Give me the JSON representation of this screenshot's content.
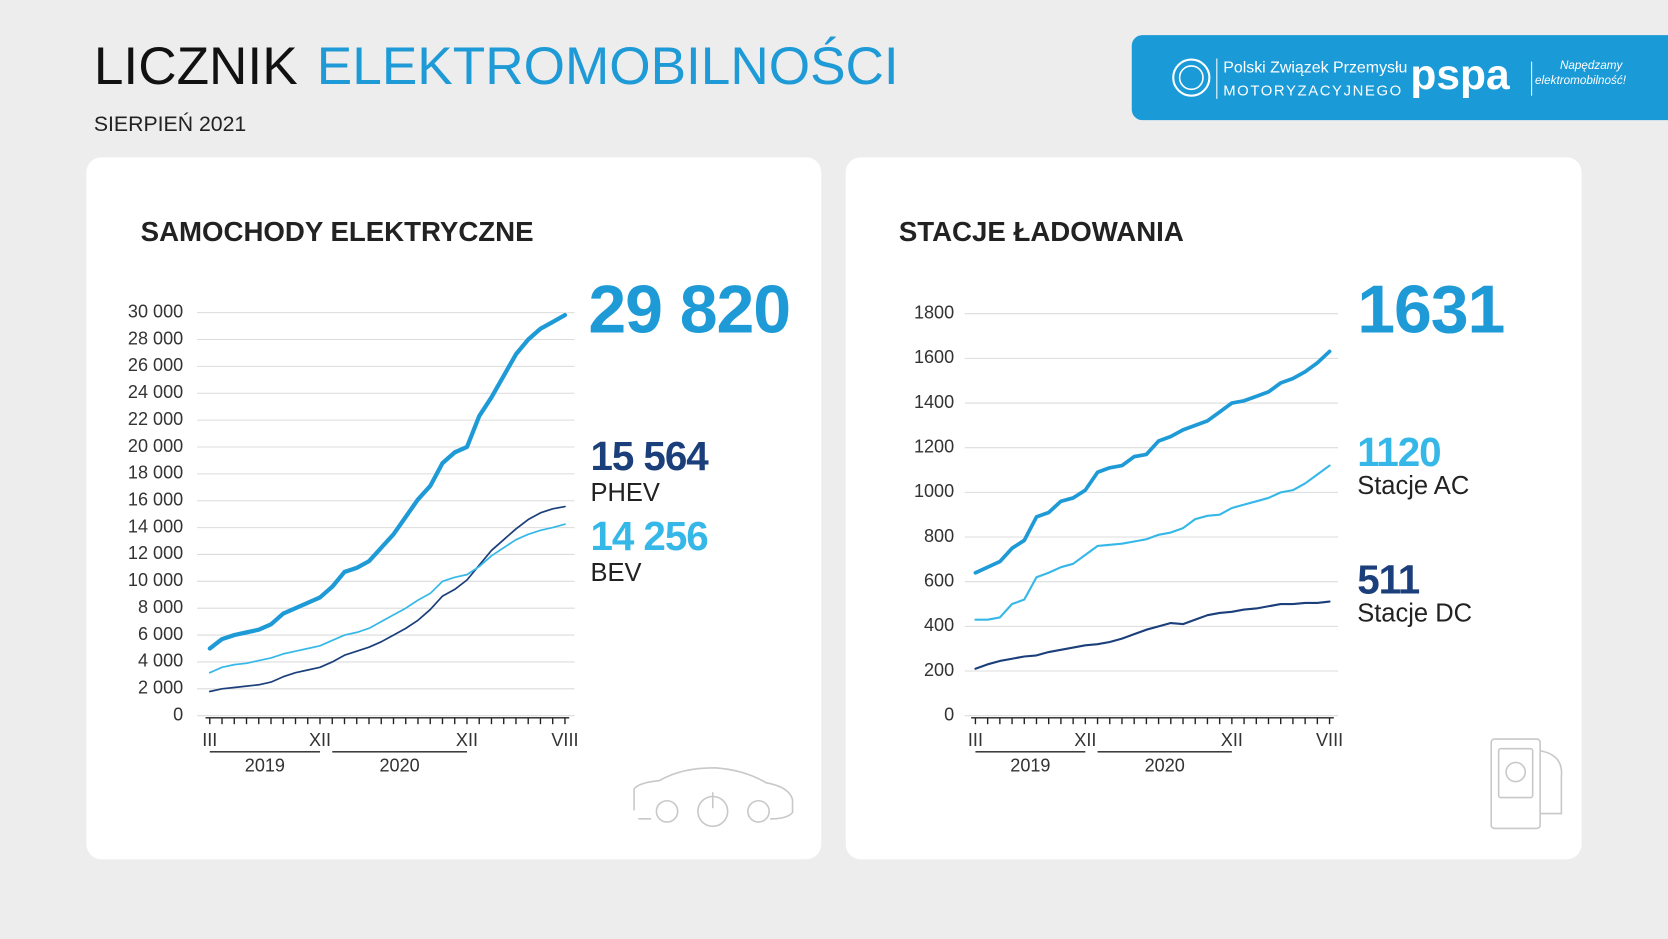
{
  "header": {
    "title_dark": "LICZNIK",
    "title_blue": "ELEKTROMOBILNOŚCI",
    "subtitle": "SIERPIEŃ 2021",
    "logo": {
      "org_line1": "Polski Związek Przemysłu",
      "org_line2": "MOTORYZACYJNEGO",
      "brand": "pspa",
      "slogan_line1": "Napędzamy",
      "slogan_line2": "elektromobilność!"
    }
  },
  "chart_data": [
    {
      "type": "line",
      "title": "SAMOCHODY ELEKTRYCZNE",
      "categories": [
        "III",
        null,
        null,
        null,
        null,
        null,
        null,
        null,
        null,
        "XII",
        null,
        null,
        null,
        null,
        null,
        null,
        null,
        null,
        null,
        null,
        null,
        "XII",
        null,
        null,
        null,
        null,
        null,
        null,
        null,
        "VIII"
      ],
      "year_labels": [
        "2019",
        "2020"
      ],
      "ylim": [
        0,
        30000
      ],
      "yticks": [
        0,
        {
          "value": 2000,
          "label": "2 000"
        },
        {
          "value": 4000,
          "label": "4 000"
        },
        {
          "value": 6000,
          "label": "6 000"
        },
        {
          "value": 8000,
          "label": "8 000"
        },
        {
          "value": 10000,
          "label": "10 000"
        },
        {
          "value": 12000,
          "label": "12 000"
        },
        {
          "value": 14000,
          "label": "14 000"
        },
        {
          "value": 16000,
          "label": "16 000"
        },
        {
          "value": 18000,
          "label": "18 000"
        },
        {
          "value": 20000,
          "label": "20 000"
        },
        {
          "value": 22000,
          "label": "22 000"
        },
        {
          "value": 24000,
          "label": "24 000"
        },
        {
          "value": 26000,
          "label": "26 000"
        },
        {
          "value": 28000,
          "label": "28 000"
        },
        {
          "value": 30000,
          "label": "30 000"
        }
      ],
      "grid": true,
      "series": [
        {
          "color": "#1e9ad6",
          "values": [
            5000,
            5700,
            6000,
            6200,
            6400,
            6800,
            7600,
            8000,
            8400,
            8800,
            9600,
            10700,
            11000,
            11500,
            12500,
            13500,
            14800,
            16100,
            17100,
            18800,
            19600,
            20000,
            22300,
            23700,
            25300,
            26900,
            28000,
            28800,
            29300,
            29820
          ],
          "value_labels": [
            null,
            null,
            null,
            null,
            null,
            null,
            null,
            null,
            null,
            null,
            null,
            null,
            null,
            null,
            null,
            null,
            null,
            null,
            null,
            null,
            null,
            null,
            null,
            null,
            null,
            null,
            null,
            null,
            null,
            "29 820"
          ]
        },
        {
          "name": "PHEV",
          "color": "#1b3f7a",
          "values": [
            1800,
            2000,
            2100,
            2200,
            2300,
            2500,
            2900,
            3200,
            3400,
            3600,
            4000,
            4500,
            4800,
            5100,
            5500,
            6000,
            6500,
            7100,
            7900,
            8900,
            9400,
            10100,
            11200,
            12300,
            13100,
            13900,
            14600,
            15100,
            15400,
            15564
          ],
          "value_labels": [
            null,
            null,
            null,
            null,
            null,
            null,
            null,
            null,
            null,
            null,
            null,
            null,
            null,
            null,
            null,
            null,
            null,
            null,
            null,
            null,
            null,
            null,
            null,
            null,
            null,
            null,
            null,
            null,
            null,
            "15 564"
          ]
        },
        {
          "name": "BEV",
          "color": "#35b8e8",
          "values": [
            3200,
            3600,
            3800,
            3900,
            4100,
            4300,
            4600,
            4800,
            5000,
            5200,
            5600,
            6000,
            6200,
            6500,
            7000,
            7500,
            8000,
            8600,
            9100,
            10000,
            10300,
            10500,
            11100,
            11900,
            12500,
            13100,
            13500,
            13800,
            14000,
            14256
          ],
          "value_labels": [
            null,
            null,
            null,
            null,
            null,
            null,
            null,
            null,
            null,
            null,
            null,
            null,
            null,
            null,
            null,
            null,
            null,
            null,
            null,
            null,
            null,
            null,
            null,
            null,
            null,
            null,
            null,
            null,
            null,
            "14 256"
          ]
        }
      ]
    },
    {
      "type": "line",
      "title": "STACJE ŁADOWANIA",
      "categories": [
        "III",
        null,
        null,
        null,
        null,
        null,
        null,
        null,
        null,
        "XII",
        null,
        null,
        null,
        null,
        null,
        null,
        null,
        null,
        null,
        null,
        null,
        "XII",
        null,
        null,
        null,
        null,
        null,
        null,
        null,
        "VIII"
      ],
      "year_labels": [
        "2019",
        "2020"
      ],
      "ylim": [
        0,
        1800
      ],
      "yticks": [
        0,
        200,
        400,
        600,
        800,
        1000,
        1200,
        1400,
        1600,
        1800
      ],
      "grid": true,
      "series": [
        {
          "color": "#1e9ad6",
          "values": [
            640,
            665,
            690,
            750,
            785,
            890,
            910,
            960,
            975,
            1010,
            1090,
            1110,
            1120,
            1160,
            1170,
            1230,
            1250,
            1280,
            1300,
            1320,
            1360,
            1400,
            1410,
            1430,
            1450,
            1490,
            1510,
            1540,
            1580,
            1631
          ]
        },
        {
          "name": "Stacje AC",
          "color": "#35b8e8",
          "values": [
            430,
            430,
            440,
            500,
            520,
            620,
            640,
            665,
            680,
            720,
            760,
            765,
            770,
            780,
            790,
            810,
            820,
            840,
            880,
            895,
            900,
            930,
            945,
            960,
            975,
            1000,
            1010,
            1040,
            1080,
            1120
          ]
        },
        {
          "name": "Stacje DC",
          "color": "#1b3f7a",
          "values": [
            210,
            230,
            245,
            255,
            265,
            270,
            285,
            295,
            305,
            315,
            320,
            330,
            345,
            365,
            385,
            400,
            415,
            410,
            430,
            450,
            460,
            465,
            475,
            480,
            490,
            500,
            500,
            505,
            505,
            511
          ]
        }
      ]
    }
  ]
}
